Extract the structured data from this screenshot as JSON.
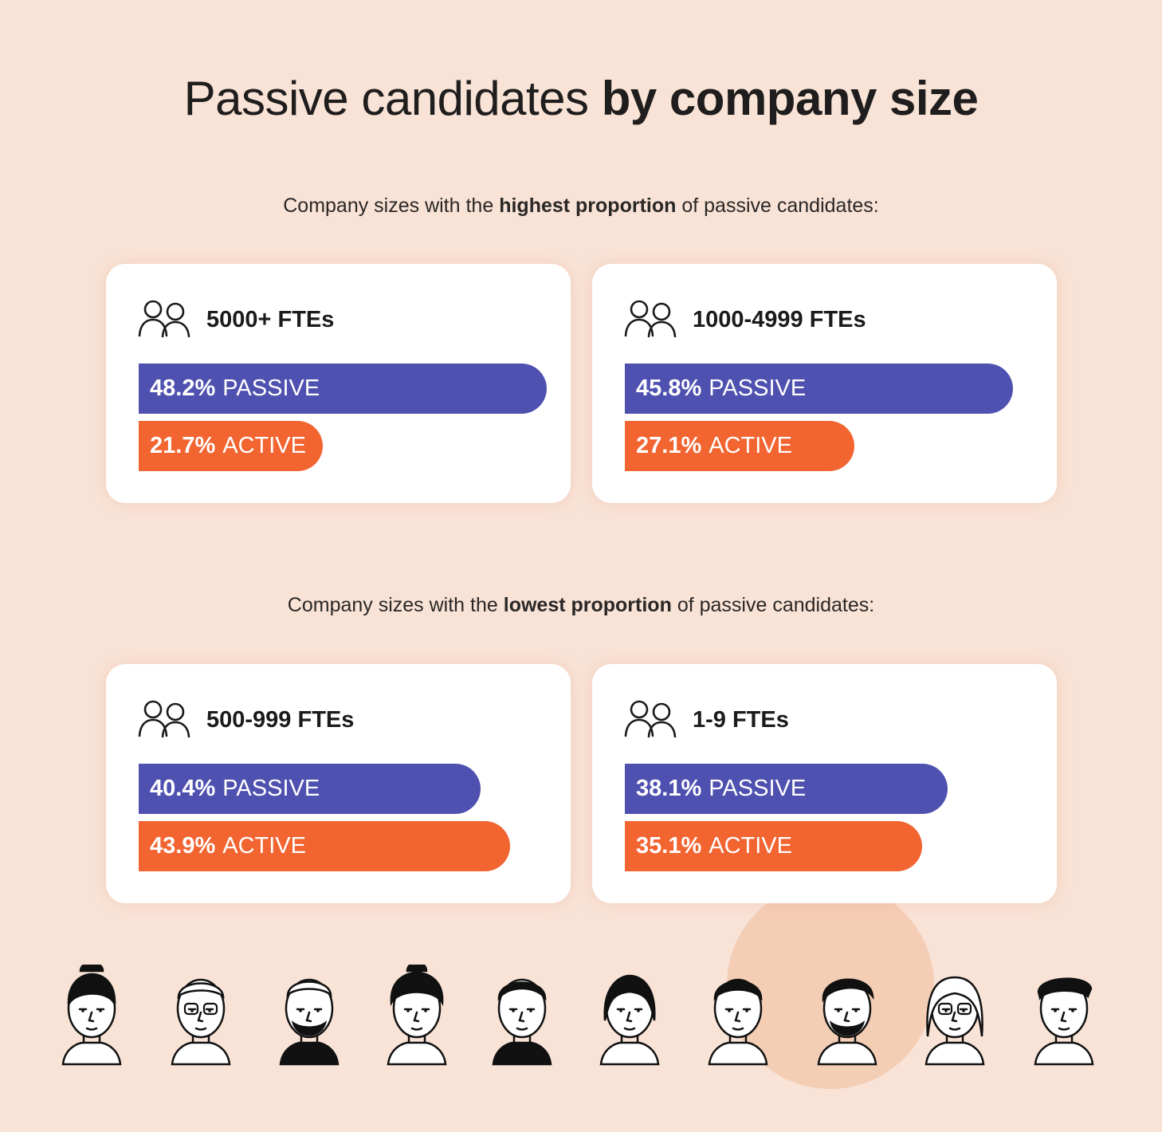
{
  "title": {
    "regular": "Passive candidates",
    "bold": "by company size"
  },
  "sections": [
    {
      "prefix": "Company sizes with the",
      "bold": "highest proportion",
      "suffix": "of passive candidates:"
    },
    {
      "prefix": "Company sizes with the",
      "bold": "lowest proportion",
      "suffix": "of passive candidates:"
    }
  ],
  "colors": {
    "passive": "#4f51b0",
    "active": "#f26430",
    "background": "#f8e3d6"
  },
  "icons": {
    "card": "people-icon",
    "faces": [
      "woman-bun-face",
      "man-glasses-face",
      "buzzcut-beard-face",
      "curly-hair-earrings-face",
      "shaved-head-face",
      "headband-girl-face",
      "short-hair-face",
      "beard-man-face",
      "glasses-curly-face",
      "cap-man-face"
    ]
  },
  "chart_data": [
    {
      "type": "bar",
      "title": "5000+ FTEs",
      "categories": [
        "PASSIVE",
        "ACTIVE"
      ],
      "values": [
        48.2,
        21.7
      ],
      "labels": [
        "48.2%",
        "21.7%"
      ]
    },
    {
      "type": "bar",
      "title": "1000-4999 FTEs",
      "categories": [
        "PASSIVE",
        "ACTIVE"
      ],
      "values": [
        45.8,
        27.1
      ],
      "labels": [
        "45.8%",
        "27.1%"
      ]
    },
    {
      "type": "bar",
      "title": "500-999 FTEs",
      "categories": [
        "PASSIVE",
        "ACTIVE"
      ],
      "values": [
        40.4,
        43.9
      ],
      "labels": [
        "40.4%",
        "43.9%"
      ]
    },
    {
      "type": "bar",
      "title": "1-9 FTEs",
      "categories": [
        "PASSIVE",
        "ACTIVE"
      ],
      "values": [
        38.1,
        35.1
      ],
      "labels": [
        "38.1%",
        "35.1%"
      ]
    }
  ]
}
